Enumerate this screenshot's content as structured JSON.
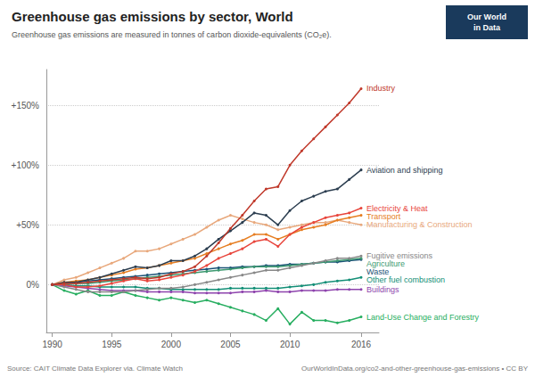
{
  "chart_data": {
    "type": "line",
    "title": "Greenhouse gas emissions by sector, World",
    "subtitle": "Greenhouse gas emissions are measured in tonnes of carbon dioxide-equivalents (CO₂e).",
    "annotations": [
      {
        "text": "Source: CAIT Climate Data Explorer via. Climate Watch"
      },
      {
        "text": "OurWorldInData.org/co2-and-other-greenhouse-gas-emissions • CC BY"
      },
      {
        "text": "Our World",
        "color": "#1a3a5c"
      },
      {
        "text": "in Data",
        "color": "#1a3a5c"
      }
    ],
    "x": [
      1990,
      1991,
      1992,
      1993,
      1994,
      1995,
      1996,
      1997,
      1998,
      1999,
      2000,
      2001,
      2002,
      2003,
      2004,
      2005,
      2006,
      2007,
      2008,
      2009,
      2010,
      2011,
      2012,
      2013,
      2014,
      2015,
      2016
    ],
    "series": [
      {
        "name": "Land-Use Change and Forestry",
        "color": "#27AE60",
        "values": [
          0,
          -5,
          -8,
          -5,
          -9,
          -9,
          -6,
          -9,
          -11,
          -13,
          -11,
          -13,
          -15,
          -13,
          -16,
          -19,
          -22,
          -25,
          -30,
          -20,
          -33,
          -23,
          -30,
          -30,
          -32,
          -30,
          -27
        ]
      },
      {
        "name": "Buildings",
        "color": "#8E44AD",
        "values": [
          0,
          -1,
          -2,
          -3,
          -4,
          -5,
          -5,
          -5,
          -6,
          -6,
          -6,
          -6,
          -7,
          -7,
          -7,
          -7,
          -6,
          -6,
          -5,
          -6,
          -6,
          -5,
          -5,
          -5,
          -4,
          -4,
          -4
        ]
      },
      {
        "name": "Other fuel combustion",
        "color": "#148F77",
        "values": [
          0,
          0,
          -1,
          -1,
          -2,
          -2,
          -2,
          -2,
          -3,
          -3,
          -4,
          -4,
          -4,
          -4,
          -4,
          -3,
          -3,
          -3,
          -3,
          -3,
          -2,
          -1,
          0,
          2,
          3,
          4,
          6
        ]
      },
      {
        "name": "Waste",
        "color": "#1A5276",
        "values": [
          0,
          1,
          2,
          3,
          4,
          5,
          6,
          7,
          8,
          9,
          10,
          11,
          12,
          13,
          14,
          14,
          15,
          15,
          16,
          16,
          17,
          17,
          18,
          19,
          19,
          20,
          21
        ]
      },
      {
        "name": "Agriculture",
        "color": "#3D9970",
        "values": [
          0,
          1,
          1,
          1,
          2,
          3,
          4,
          5,
          6,
          7,
          8,
          9,
          10,
          11,
          12,
          13,
          14,
          15,
          15,
          15,
          16,
          17,
          18,
          19,
          20,
          21,
          22
        ]
      },
      {
        "name": "Fugitive emissions",
        "color": "#888888",
        "values": [
          0,
          -2,
          -4,
          -6,
          -6,
          -6,
          -6,
          -5,
          -4,
          -3,
          -3,
          -2,
          0,
          2,
          4,
          6,
          8,
          10,
          12,
          12,
          14,
          16,
          18,
          20,
          22,
          22,
          24
        ]
      },
      {
        "name": "Manufacturing & Construction",
        "color": "#E8A87C",
        "values": [
          0,
          4,
          6,
          10,
          14,
          18,
          22,
          28,
          28,
          30,
          34,
          38,
          42,
          48,
          54,
          58,
          55,
          52,
          50,
          46,
          48,
          50,
          52,
          52,
          54,
          52,
          50
        ]
      },
      {
        "name": "Transport",
        "color": "#E67E22",
        "values": [
          0,
          2,
          3,
          4,
          6,
          8,
          10,
          13,
          14,
          16,
          18,
          20,
          22,
          26,
          30,
          34,
          37,
          42,
          42,
          38,
          42,
          46,
          48,
          50,
          54,
          56,
          58
        ]
      },
      {
        "name": "Electricity & Heat",
        "color": "#E8453C",
        "values": [
          0,
          0,
          -2,
          -2,
          -1,
          1,
          3,
          5,
          3,
          4,
          6,
          8,
          11,
          16,
          22,
          26,
          30,
          36,
          38,
          32,
          42,
          48,
          52,
          56,
          58,
          60,
          64
        ]
      },
      {
        "name": "Aviation and shipping",
        "color": "#2C3E50",
        "values": [
          0,
          2,
          2,
          4,
          6,
          9,
          12,
          15,
          14,
          16,
          20,
          20,
          24,
          30,
          38,
          45,
          52,
          60,
          58,
          50,
          62,
          70,
          74,
          78,
          80,
          88,
          96
        ]
      },
      {
        "name": "Industry",
        "color": "#C0392B",
        "values": [
          0,
          1,
          1,
          2,
          3,
          4,
          5,
          6,
          5,
          6,
          9,
          11,
          15,
          24,
          35,
          47,
          58,
          70,
          80,
          82,
          100,
          112,
          122,
          132,
          142,
          152,
          164
        ]
      }
    ],
    "xlim": [
      1989.5,
      2017.5
    ],
    "xticks": [
      1990,
      1995,
      2000,
      2005,
      2010,
      2016
    ],
    "ylim": [
      -40,
      180
    ],
    "yticks": [
      {
        "value": 0,
        "label": "0%"
      },
      {
        "value": 50,
        "label": "+50%"
      },
      {
        "value": 100,
        "label": "+100%"
      },
      {
        "value": 150,
        "label": "+150%"
      }
    ],
    "grid": true,
    "marker": "circle"
  }
}
